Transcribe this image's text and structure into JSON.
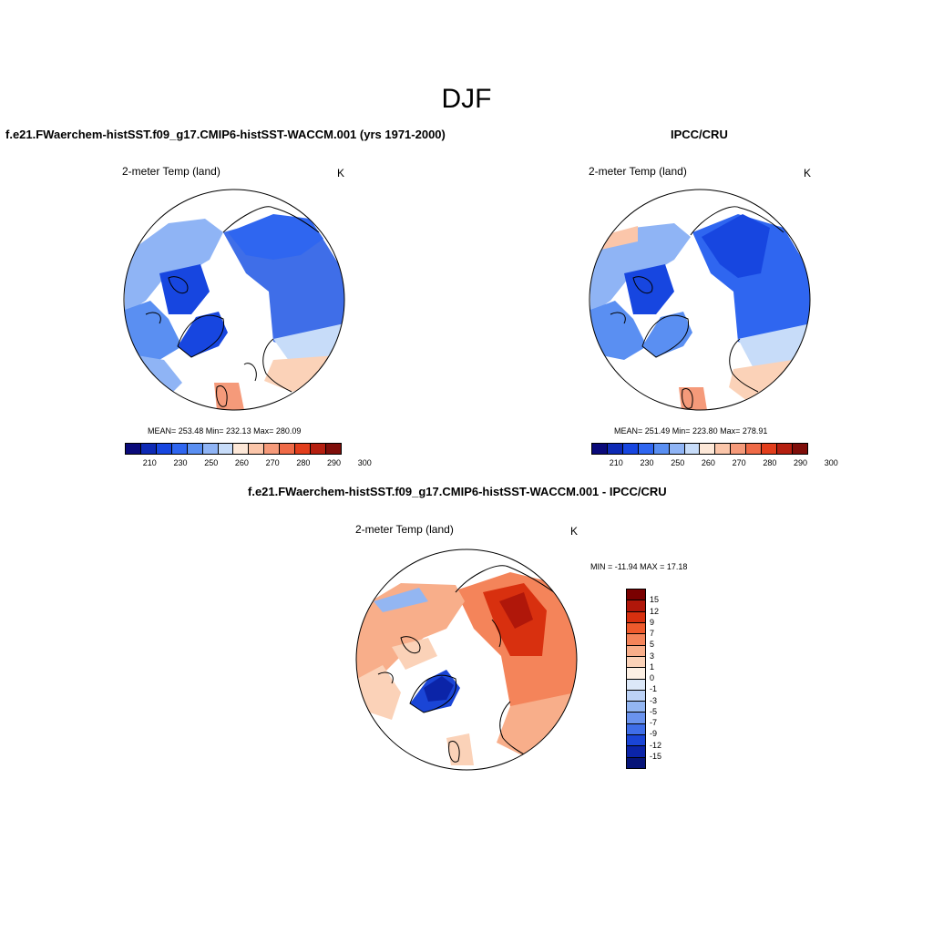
{
  "figure_title": "DJF",
  "panels": {
    "model": {
      "title": "f.e21.FWaerchem-histSST.f09_g17.CMIP6-histSST-WACCM.001 (yrs 1971-2000)",
      "field": "2-meter Temp (land)",
      "units": "K",
      "stats": "MEAN= 253.48  Min= 232.13  Max= 280.09",
      "colorbar_ticks": [
        "210",
        "230",
        "250",
        "260",
        "270",
        "280",
        "290",
        "300"
      ]
    },
    "obs": {
      "title": "IPCC/CRU",
      "field": "2-meter Temp (land)",
      "units": "K",
      "stats": "MEAN= 251.49  Min= 223.80  Max= 278.91",
      "colorbar_ticks": [
        "210",
        "230",
        "250",
        "260",
        "270",
        "280",
        "290",
        "300"
      ]
    },
    "diff": {
      "title": "f.e21.FWaerchem-histSST.f09_g17.CMIP6-histSST-WACCM.001 - IPCC/CRU",
      "field": "2-meter Temp (land)",
      "units": "K",
      "stats": "MIN = -11.94 MAX =  17.18",
      "colorbar_ticks": [
        "15",
        "12",
        "9",
        "7",
        "5",
        "3",
        "1",
        "0",
        "-1",
        "-3",
        "-5",
        "-7",
        "-9",
        "-12",
        "-15"
      ]
    }
  },
  "colors": {
    "abs_scale": [
      "#0a0a7a",
      "#0e2ab5",
      "#1746e0",
      "#2f66f0",
      "#5a8ff2",
      "#8fb4f5",
      "#c7dcf9",
      "#fde8d8",
      "#fbc6aa",
      "#f59a7a",
      "#ef6a47",
      "#e23e1c",
      "#b51f10",
      "#7f0e0a"
    ],
    "diff_scale": [
      "#7a0000",
      "#b0170a",
      "#d8300f",
      "#ef5a2c",
      "#f4845a",
      "#f8ae8a",
      "#fbd2b8",
      "#fdf0e4",
      "#dce8f8",
      "#bcd2f6",
      "#93b6f2",
      "#6a93ee",
      "#3f6ee8",
      "#1a45d6",
      "#0b24a8",
      "#061478"
    ],
    "land_outline": "#000000"
  }
}
